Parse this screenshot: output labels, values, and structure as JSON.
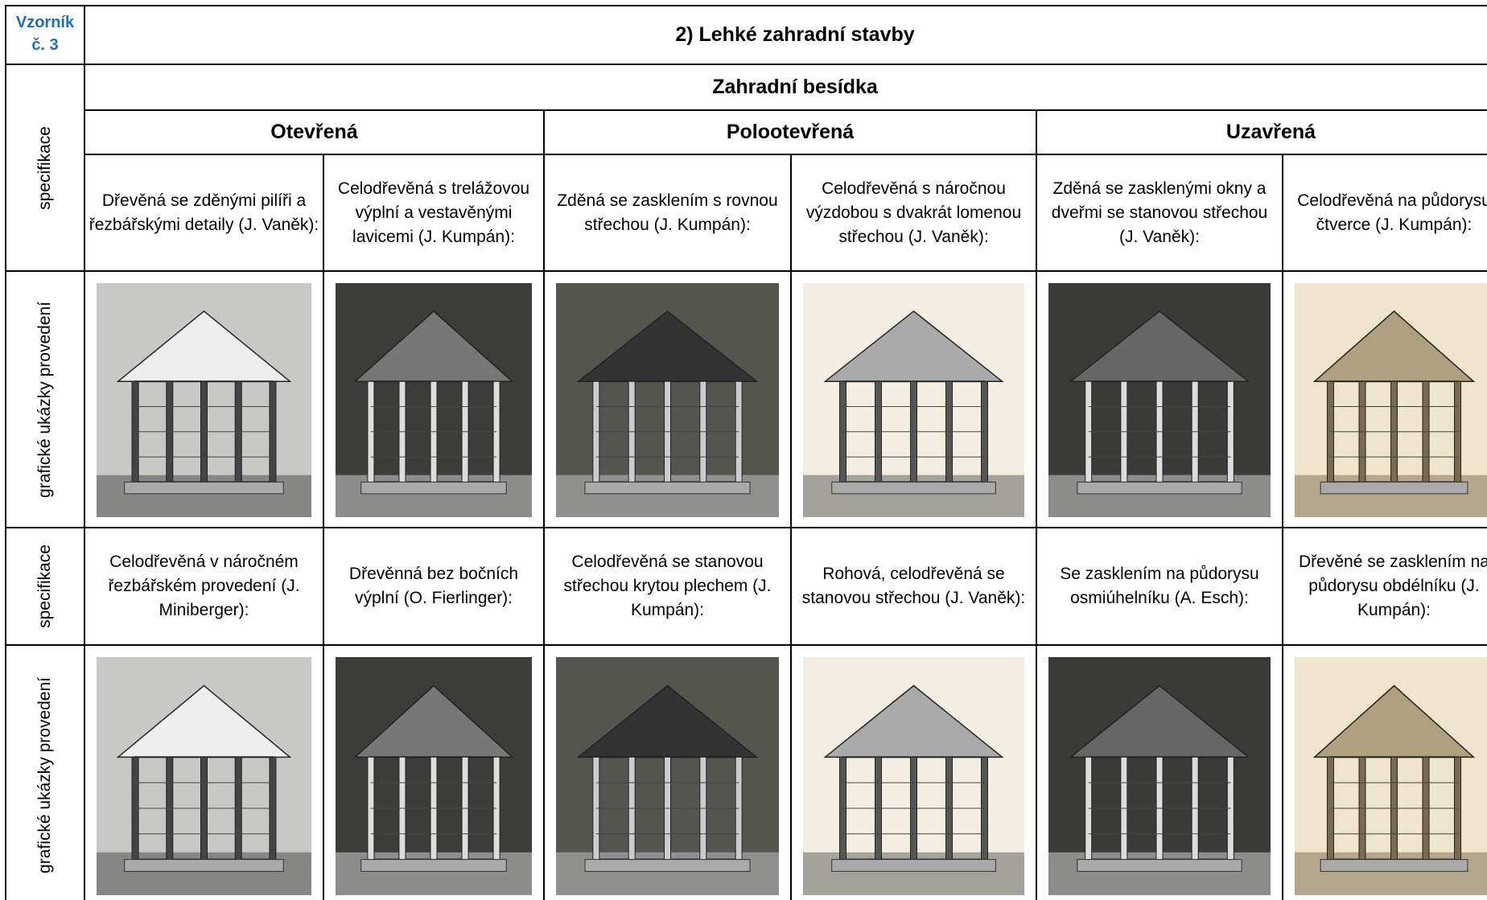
{
  "header": {
    "sample_label": "Vzorník č. 3",
    "title": "2) Lehké zahradní stavby"
  },
  "table": {
    "category": "Zahradní besídka",
    "groups": [
      "Otevřená",
      "Polootevřená",
      "Uzavřená"
    ],
    "rows": [
      {
        "label": "specifikace",
        "cells": [
          "Dřevěná se zděnými pilíři a řezbářskými detaily (J. Vaněk):",
          "Celodřevěná s trelážovou výplní a vestavěnými lavicemi (J. Kumpán):",
          "Zděná se zasklením s rovnou střechou (J. Kumpán):",
          "Celodřevěná s náročnou výzdobou s dvakrát lomenou střechou (J. Vaněk):",
          "Zděná se zasklenými okny a dveřmi se stanovou střechou (J. Vaněk):",
          "Celodřevěná na půdorysu čtverce (J. Kumpán):"
        ]
      },
      {
        "label": "grafické ukázky provedení"
      },
      {
        "label": "specifikace",
        "cells": [
          "Celodřevěná v náročném řezbářském provedení (J. Miniberger):",
          "Dřevěnná bez bočních výplní (O. Fierlinger):",
          "Celodřevěná se stanovou střechou krytou plechem (J. Kumpán):",
          "Rohová, celodřevěná se stanovou střechou (J. Vaněk):",
          "Se zasklením na půdorysu osmiúhelníku (A. Esch):",
          "Dřevěné se zasklením na půdorysu obdélníku (J. Kumpán):"
        ]
      },
      {
        "label": "grafické ukázky provedení"
      }
    ]
  }
}
